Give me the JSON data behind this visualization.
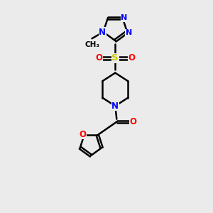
{
  "bg_color": "#ebebeb",
  "bond_color": "#000000",
  "nitrogen_color": "#0000ff",
  "oxygen_color": "#ff0000",
  "sulfur_color": "#cccc00",
  "line_width": 1.8,
  "dbo": 0.08,
  "xlim": [
    0,
    10
  ],
  "ylim": [
    0,
    12
  ]
}
